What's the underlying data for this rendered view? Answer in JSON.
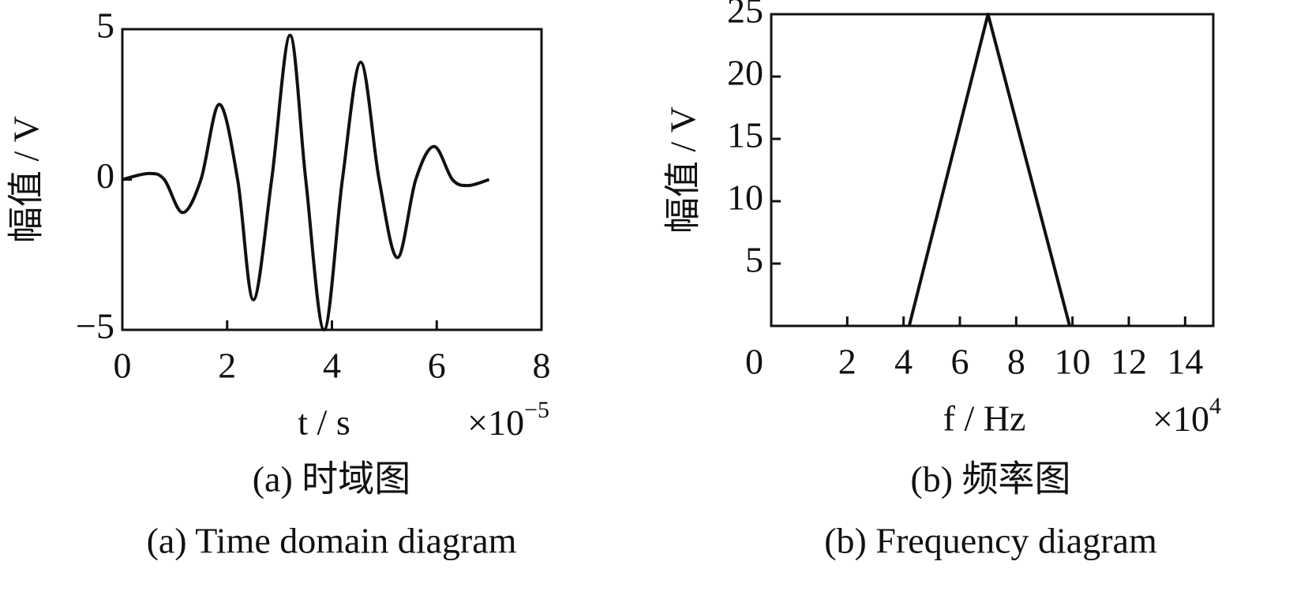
{
  "chart_data": [
    {
      "type": "line",
      "smooth": true,
      "color": "#111111",
      "ylabel": "幅值 / V",
      "xlabel": "t / s",
      "x_multiplier": "×10",
      "x_exponent": "−5",
      "caption_cn": "(a)  时域图",
      "caption_en": "(a)  Time domain diagram",
      "x": [
        0,
        0.5,
        0.8,
        1.15,
        1.5,
        1.85,
        2.2,
        2.5,
        2.85,
        3.2,
        3.5,
        3.85,
        4.2,
        4.55,
        4.9,
        5.25,
        5.6,
        5.95,
        6.3,
        6.6,
        7.0
      ],
      "values": [
        0,
        0.2,
        0,
        -1.1,
        0,
        2.5,
        0,
        -4.0,
        0,
        4.8,
        0,
        -5,
        0,
        3.9,
        0,
        -2.6,
        0,
        1.1,
        0,
        -0.2,
        0
      ],
      "xlim": [
        0,
        8
      ],
      "ylim": [
        -5,
        5
      ],
      "xticks": [
        0,
        2,
        4,
        6,
        8
      ],
      "yticks": [
        {
          "value": -5,
          "label": "−5"
        },
        0,
        5
      ]
    },
    {
      "type": "line",
      "smooth": false,
      "color": "#111111",
      "ylabel": "幅值 / V",
      "xlabel": "f / Hz",
      "x_multiplier": "×10",
      "x_exponent": "4",
      "caption_cn": "(b)  频率图",
      "caption_en": "(b)  Frequency diagram",
      "x": [
        4.2,
        7,
        9.9
      ],
      "values": [
        0,
        25,
        0
      ],
      "xlim": [
        -0.7,
        15
      ],
      "ylim": [
        0,
        25
      ],
      "xticks": [
        2,
        4,
        6,
        8,
        10,
        12,
        14
      ],
      "yticks": [
        0,
        5,
        10,
        15,
        20,
        25
      ]
    }
  ]
}
